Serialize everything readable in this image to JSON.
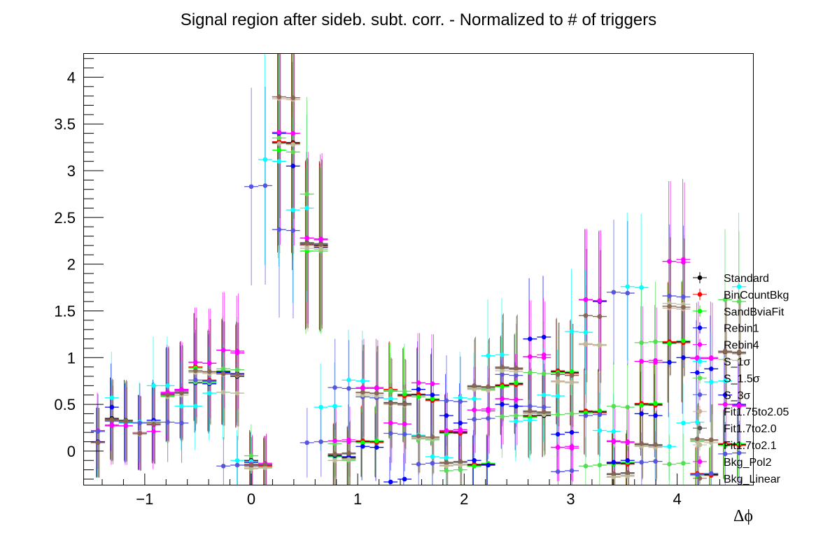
{
  "chart_data": {
    "type": "scatter",
    "title": "Signal region after sideb. subt. corr. - Normalized to # of triggers",
    "xlabel": "Δϕ",
    "ylabel": "",
    "xlim": [
      -1.5708,
      4.7124
    ],
    "ylim": [
      -0.36,
      4.25
    ],
    "xticks": [
      -1,
      0,
      1,
      2,
      3,
      4
    ],
    "xtick_labels": [
      "−1",
      "0",
      "1",
      "2",
      "3",
      "4"
    ],
    "yticks": [
      0,
      0.5,
      1,
      1.5,
      2,
      2.5,
      3,
      3.5,
      4
    ],
    "ytick_labels": [
      "0",
      "0.5",
      "1",
      "1.5",
      "2",
      "2.5",
      "3",
      "3.5",
      "4"
    ],
    "grid": false,
    "legend_position": "right",
    "x": [
      -1.4399,
      -1.309,
      -1.1781,
      -1.0472,
      -0.9163,
      -0.7854,
      -0.6545,
      -0.5236,
      -0.3927,
      -0.2618,
      -0.1309,
      0.0,
      0.1309,
      0.2618,
      0.3927,
      0.5236,
      0.6545,
      0.7854,
      0.9163,
      1.0472,
      1.1781,
      1.309,
      1.4399,
      1.5708,
      1.7017,
      1.8326,
      1.9635,
      2.0944,
      2.2253,
      2.3562,
      2.4871,
      2.618,
      2.7489,
      2.8798,
      3.0107,
      3.1416,
      3.2725,
      3.4034,
      3.5343,
      3.6652,
      3.7961,
      3.927,
      4.0579,
      4.1888,
      4.3197,
      4.4506,
      4.5815
    ],
    "series": [
      {
        "name": "Standard",
        "color": "#000000",
        "values": [
          0.09,
          0.35,
          0.33,
          0.2,
          0.3,
          0.6,
          0.65,
          0.9,
          0.75,
          0.85,
          0.8,
          -0.1,
          -0.17,
          3.3,
          3.3,
          2.2,
          2.2,
          -0.05,
          -0.07,
          0.1,
          0.1,
          0.65,
          0.6,
          0.6,
          0.55,
          0.2,
          0.2,
          -0.15,
          -0.14,
          0.7,
          0.72,
          0.38,
          0.38,
          0.85,
          0.84,
          0.42,
          0.42,
          -0.13,
          -0.13,
          0.5,
          0.5,
          1.16,
          1.17,
          -0.25,
          -0.25,
          0.07,
          0.07
        ]
      },
      {
        "name": "BinCountBkg",
        "color": "#ff0000",
        "values": [
          0.09,
          0.34,
          0.32,
          0.2,
          0.29,
          0.61,
          0.66,
          0.9,
          0.76,
          0.84,
          0.81,
          -0.11,
          -0.16,
          3.31,
          3.29,
          2.21,
          2.19,
          -0.04,
          -0.08,
          0.11,
          0.09,
          0.66,
          0.59,
          0.61,
          0.54,
          0.21,
          0.19,
          -0.14,
          -0.15,
          0.71,
          0.71,
          0.37,
          0.39,
          0.86,
          0.83,
          0.43,
          0.41,
          -0.12,
          -0.14,
          0.51,
          0.49,
          1.17,
          1.16,
          -0.24,
          -0.26,
          0.08,
          0.06
        ]
      },
      {
        "name": "SandBviaFit",
        "color": "#00ff00",
        "values": [
          0.09,
          0.33,
          0.31,
          0.19,
          0.31,
          0.59,
          0.64,
          0.89,
          0.74,
          0.86,
          0.82,
          -0.12,
          -0.18,
          3.22,
          3.28,
          2.14,
          2.16,
          -0.06,
          -0.08,
          0.09,
          0.11,
          0.64,
          0.61,
          0.58,
          0.56,
          0.19,
          0.21,
          -0.16,
          -0.13,
          0.69,
          0.73,
          0.36,
          0.4,
          0.84,
          0.85,
          0.41,
          0.43,
          -0.14,
          -0.12,
          0.49,
          0.51,
          1.15,
          1.18,
          -0.26,
          -0.24,
          0.06,
          0.08
        ]
      },
      {
        "name": "Rebin1",
        "color": "#0000ff",
        "values": [
          0.1,
          0.47,
          0.3,
          0.2,
          0.33,
          0.61,
          0.62,
          0.73,
          0.72,
          0.84,
          0.83,
          -0.12,
          -0.15,
          3.4,
          3.05,
          2.22,
          2.18,
          -0.05,
          -0.06,
          0.05,
          0.04,
          -0.33,
          -0.3,
          0.66,
          0.6,
          0.38,
          0.3,
          -0.1,
          -0.15,
          0.5,
          0.48,
          1.2,
          1.22,
          0.18,
          0.2,
          1.62,
          1.6,
          -0.12,
          -0.1,
          0.4,
          0.38,
          0.95,
          1.0,
          0.84,
          0.88,
          0.6,
          0.5
        ]
      },
      {
        "name": "Rebin4",
        "color": "#ff00ff",
        "values": [
          0.22,
          0.27,
          0.27,
          0.2,
          0.21,
          0.63,
          0.66,
          0.95,
          0.94,
          1.08,
          1.05,
          -0.14,
          -0.15,
          3.41,
          3.4,
          2.28,
          2.26,
          0.11,
          0.12,
          0.67,
          0.68,
          0.3,
          0.29,
          0.73,
          0.72,
          0.22,
          0.23,
          0.44,
          0.45,
          0.56,
          0.55,
          1.01,
          1.03,
          0.04,
          0.05,
          1.62,
          1.61,
          0.11,
          0.1,
          0.96,
          0.97,
          2.03,
          2.05,
          0.99,
          1.0,
          0.5,
          0.48
        ]
      },
      {
        "name": "S_1σ",
        "color": "#00ffff",
        "values": [
          0.09,
          0.57,
          0.3,
          0.31,
          0.7,
          0.7,
          0.48,
          0.48,
          0.62,
          0.63,
          -0.1,
          -0.11,
          3.12,
          3.1,
          2.58,
          2.6,
          0.47,
          0.48,
          0.76,
          0.75,
          0.57,
          0.56,
          0.18,
          0.17,
          -0.06,
          -0.07,
          0.57,
          0.56,
          1.02,
          1.03,
          0.32,
          0.33,
          0.6,
          0.59,
          1.28,
          1.27,
          0.22,
          0.21,
          1.76,
          1.75,
          0.06,
          0.05,
          0.3,
          0.31,
          0.74,
          0.75,
          1.76
        ]
      },
      {
        "name": "S_1.5σ",
        "color": "#55dd55",
        "values": [
          0.09,
          0.33,
          0.32,
          0.19,
          0.3,
          0.58,
          0.6,
          0.74,
          0.73,
          0.88,
          0.87,
          -0.05,
          -0.18,
          3.35,
          3.2,
          2.75,
          2.14,
          0.08,
          -0.1,
          0.58,
          0.57,
          0.65,
          0.64,
          0.13,
          0.12,
          -0.21,
          -0.2,
          0.67,
          0.66,
          0.37,
          0.38,
          0.84,
          0.83,
          0.39,
          0.4,
          -0.16,
          -0.15,
          0.48,
          0.47,
          1.16,
          1.17,
          -0.14,
          -0.13,
          0.11,
          0.12,
          1.62,
          1.6
        ]
      },
      {
        "name": "S_3σ",
        "color": "#5555dd",
        "values": [
          0.21,
          0.32,
          0.31,
          0.3,
          0.31,
          0.31,
          0.3,
          0.76,
          0.75,
          -0.16,
          -0.15,
          2.83,
          2.84,
          2.37,
          2.36,
          0.09,
          0.1,
          0.68,
          0.67,
          0.58,
          0.57,
          0.19,
          0.18,
          -0.14,
          -0.13,
          0.54,
          0.53,
          0.34,
          0.35,
          0.82,
          0.81,
          0.48,
          0.47,
          -0.22,
          -0.21,
          0.38,
          0.39,
          1.7,
          1.69,
          -0.12,
          -0.11,
          1.66,
          1.65,
          -0.25,
          -0.24,
          -0.03,
          -0.02
        ]
      },
      {
        "name": "Fit1.75to2.05",
        "color": "#ccaa99",
        "values": [
          0.09,
          0.33,
          0.32,
          0.2,
          0.3,
          0.6,
          0.62,
          0.85,
          0.84,
          0.82,
          0.81,
          -0.18,
          -0.17,
          3.77,
          3.76,
          2.2,
          2.19,
          -0.1,
          -0.09,
          0.62,
          0.61,
          0.51,
          0.5,
          0.15,
          0.14,
          -0.15,
          -0.14,
          0.68,
          0.67,
          0.88,
          0.87,
          0.41,
          0.4,
          0.75,
          0.74,
          1.14,
          1.13,
          -0.27,
          -0.26,
          0.06,
          0.05,
          1.53,
          1.52,
          0.12,
          0.11,
          1.05,
          1.04
        ]
      },
      {
        "name": "Fit1.7to2.0",
        "color": "#555555",
        "values": [
          0.09,
          0.34,
          0.33,
          0.19,
          0.29,
          0.61,
          0.63,
          0.86,
          0.85,
          0.83,
          0.82,
          -0.16,
          -0.15,
          3.79,
          3.78,
          2.23,
          2.22,
          -0.04,
          -0.03,
          0.63,
          0.62,
          0.52,
          0.51,
          0.16,
          0.15,
          -0.13,
          -0.12,
          0.69,
          0.68,
          0.89,
          0.88,
          0.42,
          0.41,
          0.82,
          0.81,
          1.45,
          1.44,
          -0.25,
          -0.24,
          0.07,
          0.06,
          1.55,
          1.54,
          0.13,
          0.12,
          1.06,
          1.05
        ]
      },
      {
        "name": "Fit1.7to2.1",
        "color": "#bbbb99",
        "values": [
          0.09,
          0.33,
          0.32,
          0.18,
          0.3,
          0.58,
          0.6,
          0.84,
          0.83,
          0.63,
          0.62,
          -0.19,
          -0.18,
          3.29,
          3.28,
          2.17,
          2.16,
          -0.1,
          -0.09,
          0.6,
          0.59,
          0.5,
          0.49,
          0.14,
          0.13,
          -0.16,
          -0.15,
          0.66,
          0.65,
          0.86,
          0.85,
          0.4,
          0.39,
          0.74,
          0.73,
          1.15,
          1.14,
          -0.28,
          -0.27,
          0.05,
          0.04,
          1.58,
          1.57,
          0.1,
          0.09,
          0.98,
          0.97
        ]
      },
      {
        "name": "Bkg_Pol2",
        "color": "#ff00ff",
        "values": [
          0.09,
          0.28,
          0.27,
          0.19,
          0.28,
          0.62,
          0.65,
          0.95,
          0.94,
          1.08,
          1.07,
          -0.14,
          -0.13,
          3.41,
          3.4,
          2.28,
          2.27,
          0.11,
          0.1,
          0.68,
          0.67,
          0.3,
          0.29,
          0.73,
          0.72,
          0.22,
          0.21,
          0.44,
          0.43,
          0.56,
          0.55,
          1.01,
          1.0,
          0.04,
          0.03,
          1.62,
          1.61,
          0.1,
          0.09,
          0.96,
          0.95,
          2.03,
          2.02,
          1.0,
          0.99,
          0.5,
          0.49
        ]
      },
      {
        "name": "Bkg_Linear",
        "color": "#886655",
        "values": [
          0.09,
          0.33,
          0.32,
          0.19,
          0.29,
          0.6,
          0.62,
          0.86,
          0.85,
          0.83,
          0.82,
          -0.15,
          -0.14,
          3.79,
          3.78,
          2.22,
          2.21,
          -0.03,
          -0.02,
          0.63,
          0.62,
          0.51,
          0.5,
          0.16,
          0.15,
          -0.12,
          -0.11,
          0.7,
          0.69,
          0.9,
          0.89,
          0.43,
          0.42,
          0.82,
          0.81,
          1.45,
          1.44,
          -0.24,
          -0.23,
          0.08,
          0.07,
          1.55,
          1.54,
          0.13,
          0.12,
          1.07,
          1.06
        ]
      }
    ]
  }
}
